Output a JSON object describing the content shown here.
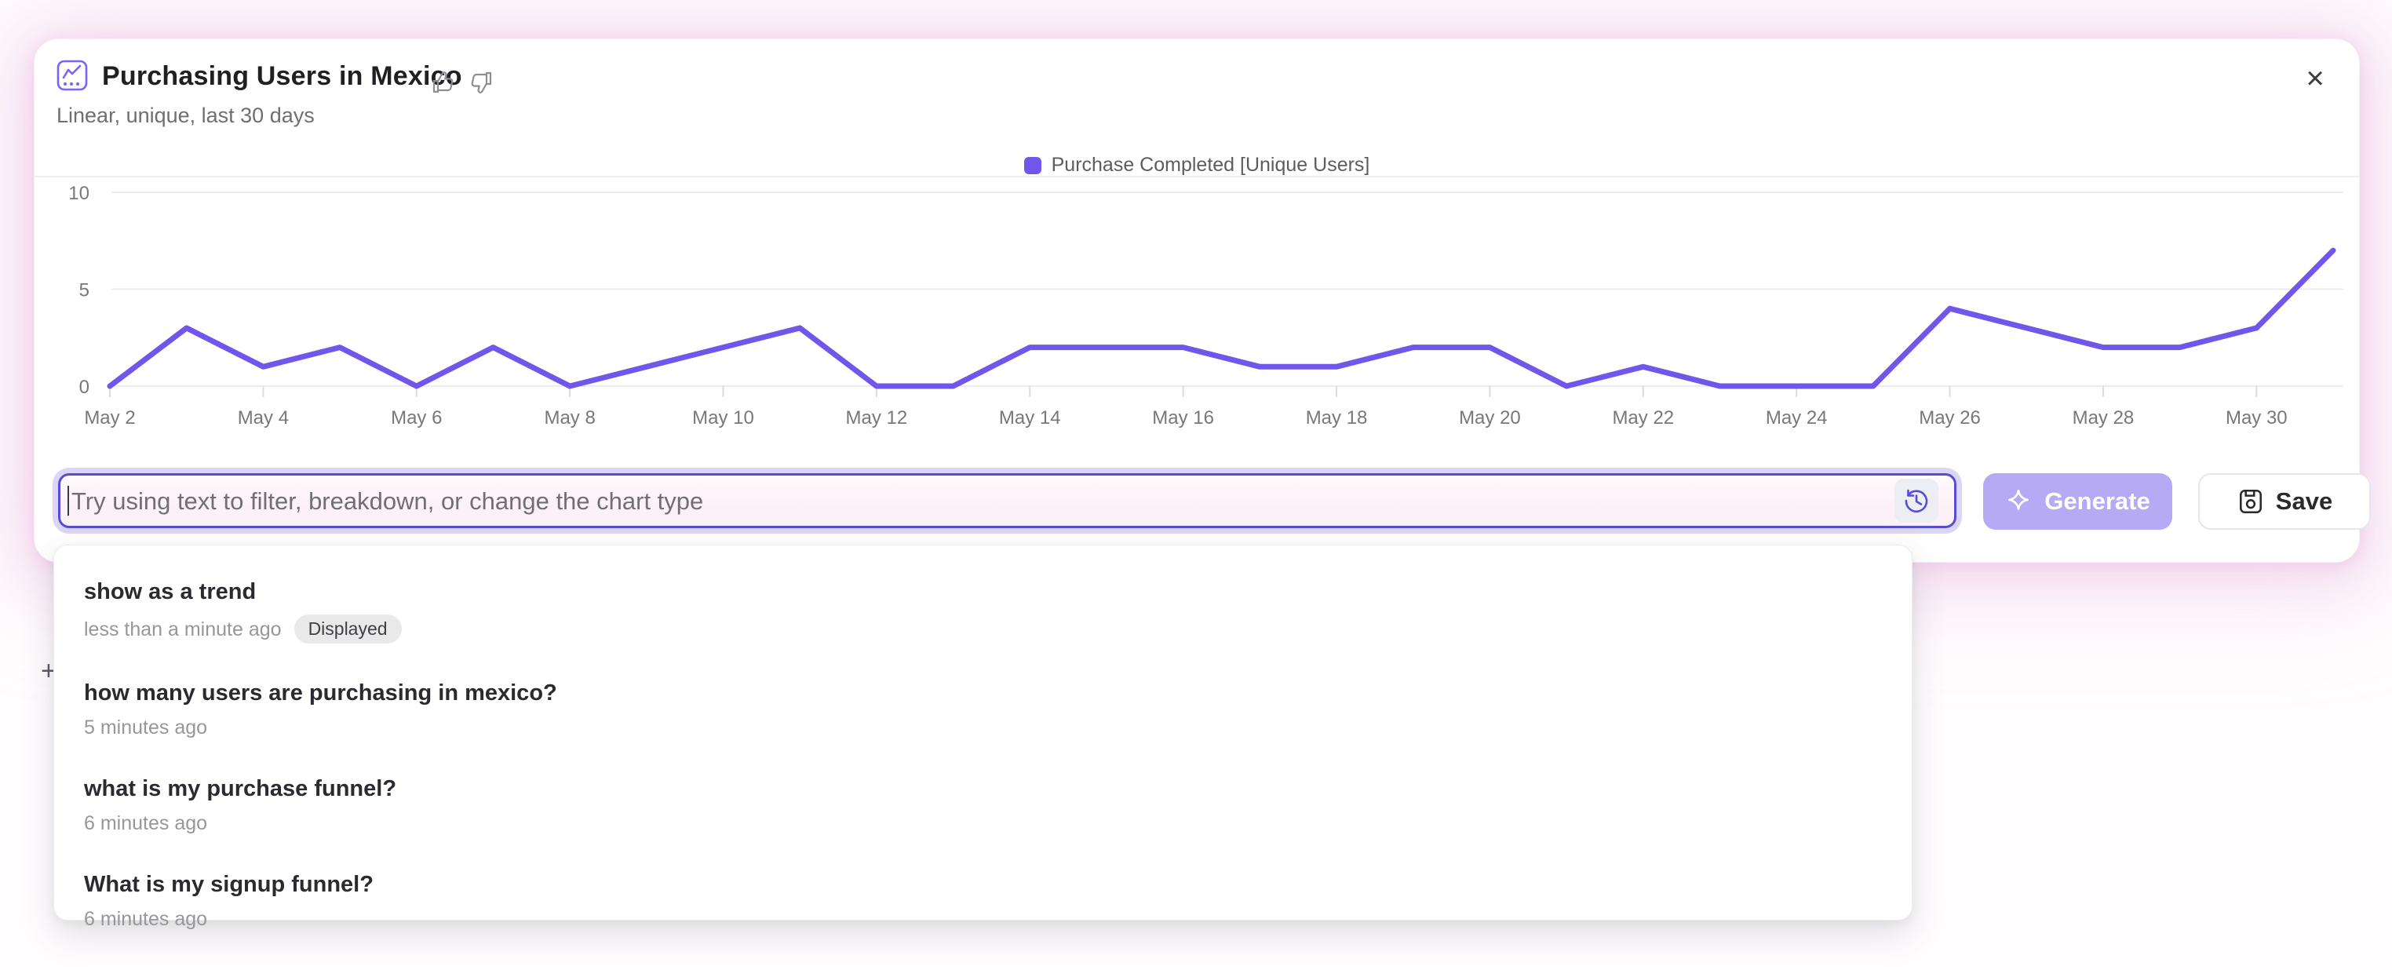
{
  "header": {
    "title": "Purchasing Users in Mexico",
    "subtitle": "Linear, unique, last 30 days",
    "close_label": "×"
  },
  "icons": {
    "chart_icon": "purple rounded square with trend line and dotted baseline",
    "thumbs_up_icon": "outline thumbs up",
    "thumbs_down_icon": "outline thumbs down",
    "close_icon": "×",
    "history_icon": "clock with counterclockwise arrow",
    "sparkle_icon": "four point star",
    "save_icon": "floppy save document"
  },
  "chart_data": {
    "type": "line",
    "title": "Purchasing Users in Mexico",
    "x": [
      "May 2",
      "May 3",
      "May 4",
      "May 5",
      "May 6",
      "May 7",
      "May 8",
      "May 9",
      "May 10",
      "May 11",
      "May 12",
      "May 13",
      "May 14",
      "May 15",
      "May 16",
      "May 17",
      "May 18",
      "May 19",
      "May 20",
      "May 21",
      "May 22",
      "May 23",
      "May 24",
      "May 25",
      "May 26",
      "May 27",
      "May 28",
      "May 29",
      "May 30",
      "May 31"
    ],
    "x_tick_labels": [
      "May 2",
      "May 4",
      "May 6",
      "May 8",
      "May 10",
      "May 12",
      "May 14",
      "May 16",
      "May 18",
      "May 20",
      "May 22",
      "May 24",
      "May 26",
      "May 28",
      "May 30"
    ],
    "series": [
      {
        "name": "Purchase Completed [Unique Users]",
        "color": "#7156eb",
        "values": [
          0,
          3,
          1,
          2,
          0,
          2,
          0,
          1,
          2,
          3,
          0,
          0,
          2,
          2,
          2,
          1,
          1,
          2,
          2,
          0,
          1,
          0,
          0,
          0,
          4,
          3,
          2,
          2,
          3,
          7
        ]
      }
    ],
    "ylim": [
      0,
      10
    ],
    "yticks": [
      0,
      5,
      10
    ],
    "grid": true,
    "legend_position": "top-center"
  },
  "prompt_bar": {
    "placeholder": "Try using text to filter, breakdown, or change the chart type",
    "generate_label": "Generate",
    "save_label": "Save"
  },
  "history_dropdown": {
    "items": [
      {
        "title": "show as a trend",
        "time": "less than a minute ago",
        "badge": "Displayed"
      },
      {
        "title": "how many users are purchasing in mexico?",
        "time": "5 minutes ago",
        "badge": ""
      },
      {
        "title": "what is my purchase funnel?",
        "time": "6 minutes ago",
        "badge": ""
      },
      {
        "title": "What is my signup funnel?",
        "time": "6 minutes ago",
        "badge": ""
      }
    ]
  },
  "artifacts": {
    "plus_mark": "+"
  },
  "colors": {
    "line": "#7156eb",
    "accent_purple": "#564dd6",
    "generate_bg": "#b6aaf4",
    "input_glow": "#dbd5f8",
    "badge_bg": "#e9e9ea",
    "glow_pink": "#eec4e6"
  }
}
